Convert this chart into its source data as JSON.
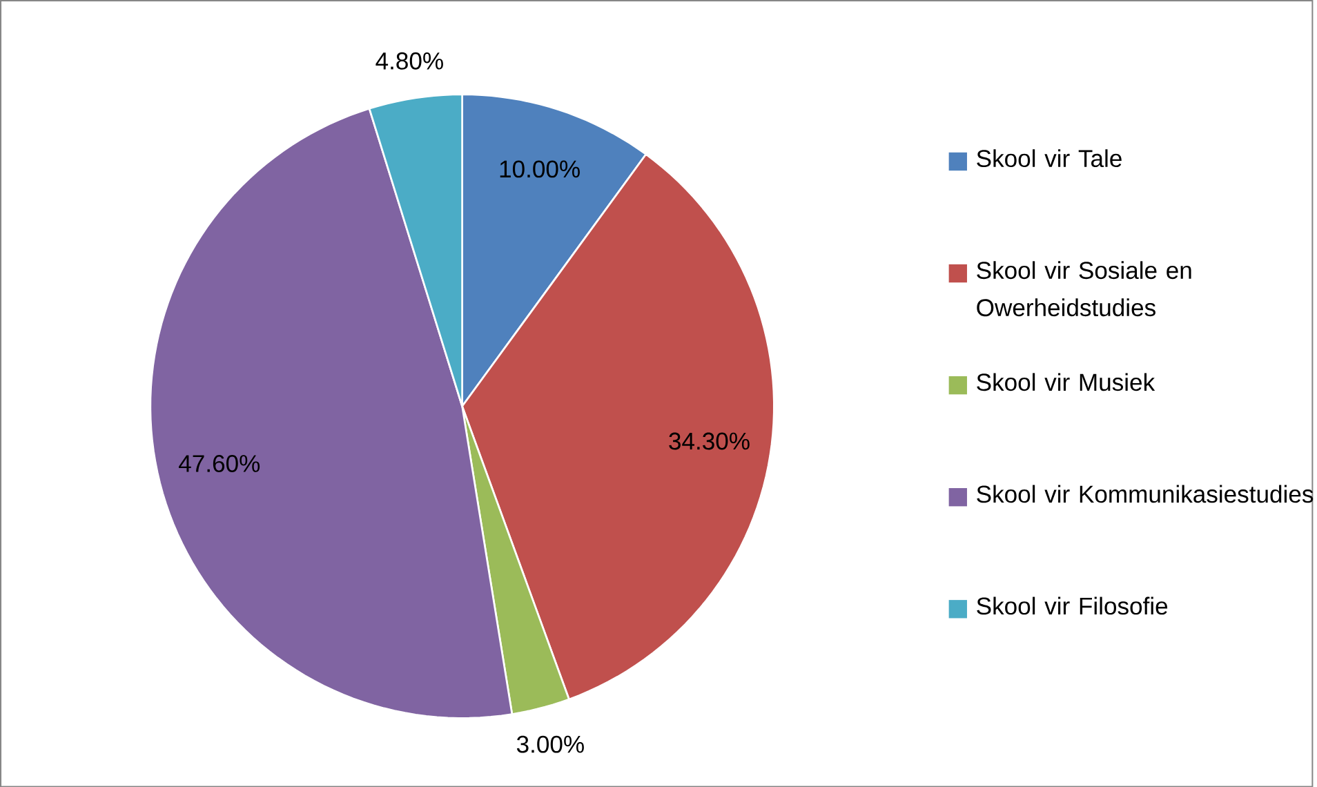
{
  "chart_data": {
    "type": "pie",
    "categories": [
      "Skool vir Tale",
      "Skool vir Sosiale en Owerheidstudies",
      "Skool vir Musiek",
      "Skool vir Kommunikasiestudies",
      "Skool vir Filosofie"
    ],
    "values": [
      10.0,
      34.3,
      3.0,
      47.6,
      4.8
    ],
    "colors": [
      "#4f81bd",
      "#c0504d",
      "#9bbb59",
      "#8064a2",
      "#4bacc6"
    ],
    "value_labels": [
      "10.00%",
      "34.30%",
      "3.00%",
      "47.60%",
      "4.80%"
    ],
    "legend": "right"
  }
}
